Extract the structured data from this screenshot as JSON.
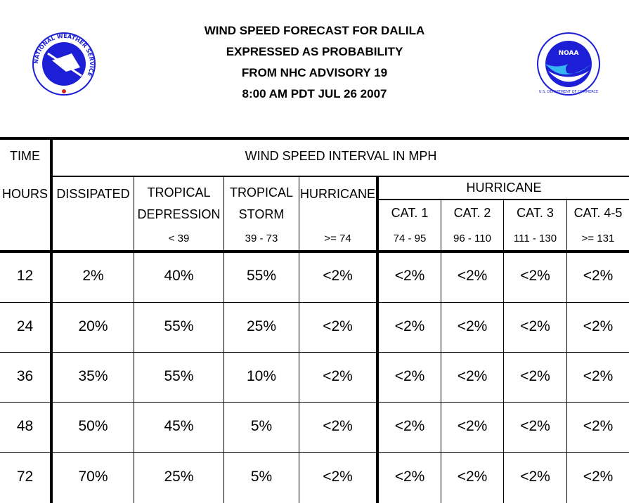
{
  "header": {
    "line1": "WIND SPEED FORECAST FOR DALILA",
    "line2": "EXPRESSED AS PROBABILITY",
    "line3": "FROM NHC ADVISORY   19",
    "line4": "8:00 AM PDT JUL 26 2007"
  },
  "logos": {
    "left": "nws-logo",
    "left_text": "NATIONAL WEATHER SERVICE",
    "right": "noaa-logo",
    "right_badge": "NOAA",
    "right_text": "U.S. DEPARTMENT OF COMMERCE"
  },
  "table": {
    "time_label": "TIME",
    "interval_title": "WIND SPEED INTERVAL IN MPH",
    "hours_label": "HOURS",
    "dissipated_label": "DISSIPATED",
    "td_label_1": "TROPICAL",
    "td_label_2": "DEPRESSION",
    "td_range": "< 39",
    "ts_label_1": "TROPICAL",
    "ts_label_2": "STORM",
    "ts_range": "39 - 73",
    "hurricane_label": "HURRICANE",
    "hurricane_range": ">= 74",
    "hurricane_group_label": "HURRICANE",
    "cat1_label": "CAT. 1",
    "cat1_range": "74 - 95",
    "cat2_label": "CAT. 2",
    "cat2_range": "96 - 110",
    "cat3_label": "CAT. 3",
    "cat3_range": "111 - 130",
    "cat45_label": "CAT. 4-5",
    "cat45_range": ">= 131",
    "rows": [
      [
        "12",
        "2%",
        "40%",
        "55%",
        "<2%",
        "<2%",
        "<2%",
        "<2%",
        "<2%"
      ],
      [
        "24",
        "20%",
        "55%",
        "25%",
        "<2%",
        "<2%",
        "<2%",
        "<2%",
        "<2%"
      ],
      [
        "36",
        "35%",
        "55%",
        "10%",
        "<2%",
        "<2%",
        "<2%",
        "<2%",
        "<2%"
      ],
      [
        "48",
        "50%",
        "45%",
        "5%",
        "<2%",
        "<2%",
        "<2%",
        "<2%",
        "<2%"
      ],
      [
        "72",
        "70%",
        "25%",
        "5%",
        "<2%",
        "<2%",
        "<2%",
        "<2%",
        "<2%"
      ]
    ]
  }
}
